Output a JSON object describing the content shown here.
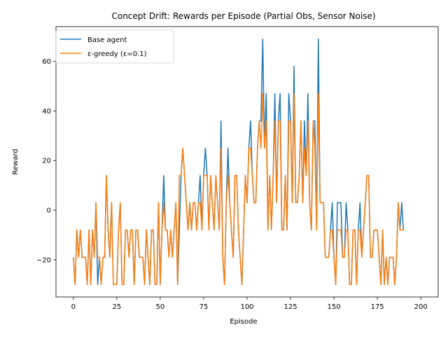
{
  "chart_data": {
    "type": "line",
    "title": "Concept Drift: Rewards per Episode (Partial Obs, Sensor Noise)",
    "xlabel": "Episode",
    "ylabel": "Reward",
    "xlim": [
      -10,
      210
    ],
    "ylim": [
      -35,
      74
    ],
    "xticks": [
      0,
      25,
      50,
      75,
      100,
      125,
      150,
      175,
      200
    ],
    "yticks": [
      -20,
      0,
      20,
      40,
      60
    ],
    "legend_position": "top-left",
    "grid": false,
    "series": [
      {
        "name": "Base agent",
        "color": "#1f77b4",
        "values": [
          -19,
          -30,
          -8,
          -19,
          -8,
          -19,
          -19,
          -19,
          -30,
          -8,
          -30,
          -8,
          -19,
          3,
          -30,
          -19,
          -30,
          -19,
          -19,
          14,
          -8,
          -19,
          3,
          -30,
          -30,
          -30,
          -8,
          3,
          -30,
          -30,
          -8,
          -8,
          -19,
          -8,
          -8,
          -30,
          -8,
          -8,
          -19,
          -19,
          -19,
          -30,
          -8,
          -19,
          -30,
          -8,
          -8,
          -30,
          -30,
          3,
          -30,
          -8,
          14,
          -8,
          -8,
          -19,
          -8,
          -19,
          -8,
          3,
          -30,
          -8,
          14,
          25,
          14,
          3,
          -8,
          3,
          -8,
          3,
          3,
          -8,
          3,
          14,
          -8,
          14,
          25,
          14,
          -8,
          14,
          3,
          -8,
          14,
          3,
          -8,
          36,
          -19,
          -30,
          3,
          25,
          3,
          -8,
          -19,
          14,
          14,
          -8,
          -19,
          -30,
          -8,
          14,
          3,
          25,
          36,
          14,
          3,
          3,
          25,
          36,
          36,
          69,
          25,
          47,
          -8,
          14,
          -8,
          14,
          47,
          3,
          36,
          47,
          -8,
          -8,
          14,
          -8,
          47,
          36,
          3,
          58,
          3,
          3,
          14,
          36,
          3,
          36,
          14,
          47,
          3,
          -8,
          36,
          36,
          -8,
          69,
          3,
          3,
          3,
          -19,
          -19,
          -19,
          -8,
          3,
          -19,
          -30,
          3,
          3,
          3,
          -19,
          -19,
          3,
          -8,
          -30,
          -30,
          -8,
          -8,
          -30,
          -8,
          3,
          -19,
          -8,
          3,
          14,
          14,
          -19,
          -19,
          -8,
          -8,
          -8,
          -19,
          -30,
          -8,
          -30,
          -19,
          -30,
          -19,
          -19,
          -19,
          -30,
          -19,
          3,
          -8,
          3,
          -8
        ]
      },
      {
        "name": "ε-greedy (ε=0.1)",
        "color": "#ff7f0e",
        "values": [
          -19,
          -30,
          -8,
          -19,
          -8,
          -19,
          -19,
          -19,
          -30,
          -8,
          -30,
          -8,
          -19,
          3,
          -19,
          -19,
          -30,
          -19,
          -19,
          14,
          -8,
          -19,
          3,
          -30,
          -30,
          -30,
          -8,
          3,
          -30,
          -30,
          -8,
          -8,
          -19,
          -8,
          -8,
          -30,
          -8,
          -8,
          -19,
          -19,
          -19,
          -30,
          -8,
          -19,
          -30,
          -8,
          -8,
          -30,
          -30,
          3,
          -30,
          -8,
          3,
          -8,
          -8,
          -19,
          -8,
          -19,
          -8,
          3,
          -30,
          14,
          14,
          25,
          14,
          3,
          -8,
          3,
          -8,
          3,
          3,
          -8,
          3,
          3,
          -8,
          14,
          14,
          14,
          -8,
          14,
          3,
          -8,
          14,
          3,
          -8,
          25,
          -19,
          -30,
          3,
          14,
          3,
          -8,
          -19,
          14,
          14,
          -8,
          -19,
          -30,
          -8,
          14,
          3,
          25,
          25,
          14,
          3,
          3,
          25,
          36,
          25,
          47,
          25,
          36,
          -8,
          14,
          -8,
          14,
          36,
          3,
          36,
          36,
          -8,
          -8,
          14,
          -8,
          36,
          36,
          3,
          47,
          3,
          3,
          14,
          36,
          3,
          25,
          14,
          36,
          3,
          -8,
          36,
          25,
          -8,
          47,
          3,
          3,
          3,
          -19,
          -19,
          -19,
          -8,
          -8,
          -19,
          -30,
          -8,
          -8,
          -8,
          -19,
          -19,
          -8,
          -8,
          -30,
          -30,
          -8,
          -8,
          -30,
          -8,
          -8,
          -19,
          -8,
          3,
          14,
          14,
          -19,
          -19,
          -8,
          -8,
          -8,
          -19,
          -30,
          -8,
          -30,
          -19,
          -30,
          -19,
          -19,
          -19,
          -30,
          -19,
          3,
          -8,
          -8,
          -8
        ]
      }
    ]
  }
}
